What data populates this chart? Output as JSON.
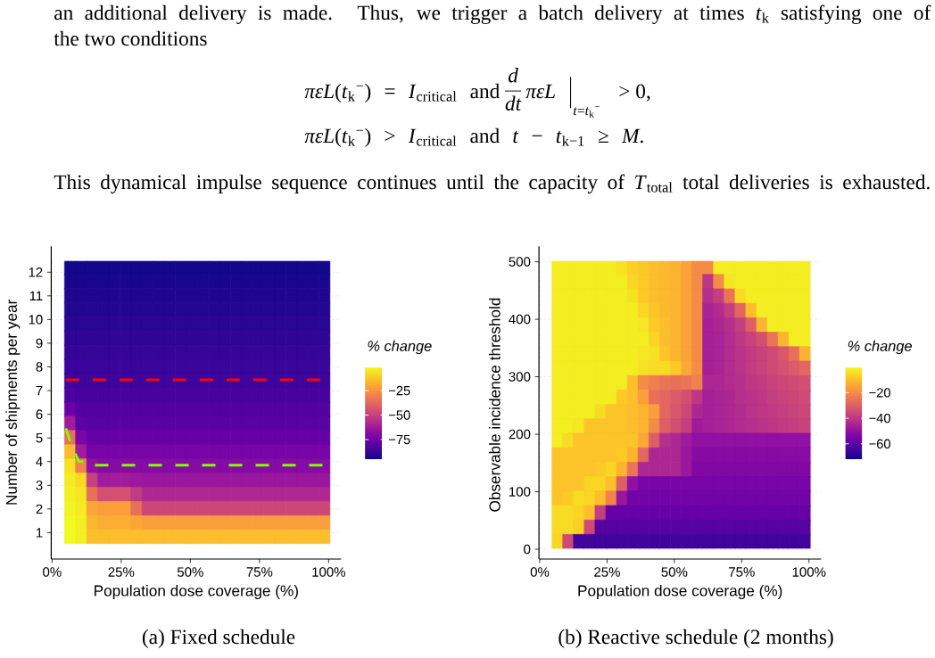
{
  "chart_data": [
    {
      "type": "heatmap",
      "xlabel": "Population dose coverage (%)",
      "ylabel": "Number of shipments per year",
      "clabel": "% change",
      "x": [
        6.5,
        10.5,
        14.5,
        18.5,
        22.5,
        26.5,
        30.5,
        34.5,
        38.5,
        42.5,
        46.5,
        50.5,
        54.5,
        58.5,
        62.5,
        66.5,
        70.5,
        74.5,
        78.5,
        82.5,
        86.5,
        90.5,
        94.5,
        98.5
      ],
      "cells": [
        [
          -94,
          -94,
          -94,
          -94,
          -94,
          -94,
          -94,
          -94,
          -94,
          -94,
          -94,
          -94,
          -94,
          -94,
          -94,
          -94,
          -94,
          -94,
          -94,
          -94,
          -94,
          -94,
          -94,
          -94
        ],
        [
          -93,
          -93,
          -93,
          -93,
          -93,
          -93,
          -93,
          -93,
          -93,
          -93,
          -93,
          -93,
          -93,
          -93,
          -93,
          -93,
          -93,
          -93,
          -93,
          -93,
          -93,
          -93,
          -93,
          -93
        ],
        [
          -92,
          -92,
          -92,
          -92,
          -92,
          -92,
          -92,
          -92,
          -92,
          -92,
          -92,
          -92,
          -92,
          -92,
          -92,
          -92,
          -92,
          -92,
          -92,
          -92,
          -92,
          -92,
          -92,
          -92
        ],
        [
          -91,
          -91,
          -91,
          -91,
          -91,
          -91,
          -91,
          -91,
          -91,
          -91,
          -91,
          -91,
          -91,
          -91,
          -91,
          -91,
          -91,
          -91,
          -91,
          -91,
          -91,
          -91,
          -91,
          -91
        ],
        [
          -90,
          -90,
          -90,
          -90,
          -90,
          -90,
          -90,
          -90,
          -90,
          -90,
          -90,
          -90,
          -90,
          -90,
          -90,
          -90,
          -90,
          -90,
          -90,
          -90,
          -90,
          -90,
          -90,
          -90
        ],
        [
          -89,
          -89,
          -89,
          -89,
          -89,
          -89,
          -89,
          -89,
          -89,
          -89,
          -89,
          -89,
          -89,
          -89,
          -89,
          -89,
          -89,
          -89,
          -89,
          -89,
          -89,
          -89,
          -89,
          -89
        ],
        [
          -88,
          -88,
          -88,
          -88,
          -88,
          -88,
          -88,
          -88,
          -88,
          -88,
          -88,
          -88,
          -88,
          -88,
          -88,
          -88,
          -88,
          -88,
          -88,
          -88,
          -88,
          -88,
          -88,
          -88
        ],
        [
          -87,
          -87,
          -87,
          -87,
          -87,
          -87,
          -87,
          -87,
          -87,
          -87,
          -87,
          -87,
          -87,
          -87,
          -87,
          -87,
          -87,
          -87,
          -87,
          -87,
          -87,
          -87,
          -87,
          -87
        ],
        [
          -86,
          -86,
          -86,
          -86,
          -86,
          -86,
          -86,
          -86,
          -86,
          -86,
          -86,
          -86,
          -86,
          -86,
          -86,
          -86,
          -86,
          -86,
          -86,
          -86,
          -86,
          -86,
          -86,
          -86
        ],
        [
          -83,
          -84,
          -84,
          -84,
          -84,
          -84,
          -84,
          -84,
          -84,
          -84,
          -84,
          -84,
          -84,
          -84,
          -84,
          -84,
          -84,
          -84,
          -84,
          -84,
          -84,
          -84,
          -84,
          -84
        ],
        [
          -76,
          -82,
          -82,
          -82,
          -82,
          -82,
          -82,
          -82,
          -82,
          -82,
          -82,
          -82,
          -82,
          -82,
          -82,
          -82,
          -82,
          -82,
          -82,
          -82,
          -82,
          -82,
          -82,
          -82
        ],
        [
          -62,
          -79,
          -80,
          -80,
          -80,
          -80,
          -80,
          -80,
          -80,
          -80,
          -80,
          -80,
          -80,
          -80,
          -80,
          -80,
          -80,
          -80,
          -80,
          -80,
          -80,
          -80,
          -80,
          -80
        ],
        [
          -35,
          -72,
          -77,
          -77,
          -77,
          -77,
          -77,
          -77,
          -77,
          -77,
          -77,
          -77,
          -77,
          -77,
          -77,
          -77,
          -77,
          -77,
          -77,
          -77,
          -77,
          -77,
          -77,
          -77
        ],
        [
          -15,
          -62,
          -73,
          -73,
          -73,
          -73,
          -73,
          -73,
          -73,
          -73,
          -73,
          -73,
          -73,
          -73,
          -73,
          -73,
          -73,
          -73,
          -73,
          -73,
          -73,
          -73,
          -73,
          -73
        ],
        [
          -6,
          -30,
          -66,
          -69,
          -69,
          -69,
          -69,
          -69,
          -69,
          -69,
          -69,
          -69,
          -69,
          -69,
          -69,
          -69,
          -69,
          -69,
          -69,
          -69,
          -69,
          -69,
          -69,
          -69
        ],
        [
          -4,
          -8,
          -50,
          -62,
          -62,
          -62,
          -63,
          -64,
          -64,
          -64,
          -64,
          -64,
          -64,
          -64,
          -64,
          -64,
          -64,
          -64,
          -64,
          -64,
          -64,
          -64,
          -64,
          -64
        ],
        [
          -3,
          -5,
          -35,
          -45,
          -45,
          -45,
          -52,
          -58,
          -58,
          -58,
          -58,
          -58,
          -58,
          -58,
          -58,
          -58,
          -58,
          -58,
          -58,
          -58,
          -58,
          -58,
          -58,
          -58
        ],
        [
          -2,
          -4,
          -20,
          -22,
          -22,
          -22,
          -35,
          -48,
          -48,
          -48,
          -48,
          -48,
          -48,
          -48,
          -48,
          -48,
          -48,
          -48,
          -48,
          -48,
          -48,
          -48,
          -48,
          -48
        ],
        [
          -1,
          -3,
          -16,
          -18,
          -18,
          -18,
          -20,
          -22,
          -22,
          -22,
          -22,
          -22,
          -22,
          -22,
          -22,
          -22,
          -22,
          -22,
          -22,
          -22,
          -22,
          -22,
          -22,
          -22
        ],
        [
          -1,
          -3,
          -14,
          -14,
          -14,
          -14,
          -14,
          -14,
          -14,
          -14,
          -14,
          -14,
          -14,
          -14,
          -14,
          -14,
          -14,
          -14,
          -14,
          -14,
          -14,
          -14,
          -14,
          -14
        ]
      ],
      "xlim": [
        -0.3,
        104.5
      ],
      "ylim": [
        0.5,
        12.5
      ],
      "xticks": [
        {
          "value": 0,
          "label": "0%"
        },
        {
          "value": 25,
          "label": "25%"
        },
        {
          "value": 50,
          "label": "50%"
        },
        {
          "value": 75,
          "label": "75%"
        },
        {
          "value": 100,
          "label": "100%"
        }
      ],
      "yticks": [
        1,
        2,
        3,
        4,
        5,
        6,
        7,
        8,
        9,
        10,
        11,
        12
      ],
      "clim": [
        -95,
        -1
      ],
      "cticks": [
        {
          "value": -25,
          "label": "−25"
        },
        {
          "value": -50,
          "label": "−50"
        },
        {
          "value": -75,
          "label": "−75"
        }
      ],
      "grid": true,
      "series": [
        {
          "type": "line",
          "color": "#ff0000",
          "line_style": "dashed",
          "x": [
            5,
            100
          ],
          "values": [
            7.45,
            7.45
          ]
        },
        {
          "type": "line",
          "color": "#7fff00",
          "line_style": "dashed",
          "x": [
            5,
            6.6,
            8.6,
            9.7,
            11.5,
            12.5,
            100
          ],
          "values": [
            5.4,
            4.85,
            4.3,
            4.0,
            4.0,
            3.85,
            3.85
          ]
        }
      ],
      "annotations": [
        "an additional delivery is made. Thus, we trigger a batch delivery at times *t*$_{k}$ satisfying one of",
        "the two conditions",
        "*πεL*(*t*$_{k}$$^{−}$) = *I*$_{critical}$ and",
        "d",
        "dt",
        "πεL",
        "*t*=*t*$_{k}$$^{−}$",
        "> 0,",
        "*πεL*(*t*$_{k}$$^{−}$) > *I*$_{critical}$ and *t* − *t*$_{k−1}$ ≥ *M*.",
        "This dynamical impulse sequence continues until the capacity of *T*$_{total}$ total deliveries is exhausted.",
        "(a) Fixed schedule"
      ]
    },
    {
      "type": "heatmap",
      "xlabel": "Population dose coverage (%)",
      "ylabel": "Observable incidence threshold",
      "clabel": "% change",
      "x": [
        6.5,
        10.5,
        14.5,
        18.5,
        22.5,
        26.5,
        30.5,
        34.5,
        38.5,
        42.5,
        46.5,
        50.5,
        54.5,
        58.5,
        62.5,
        66.5,
        70.5,
        74.5,
        78.5,
        82.5,
        86.5,
        90.5,
        94.5,
        98.5
      ],
      "cells": [
        [
          -2,
          -2,
          -2,
          -2,
          -2,
          -2,
          -4,
          -7,
          -8,
          -10,
          -11,
          -12,
          -15,
          -20,
          -20,
          -2,
          -2,
          -2,
          -2,
          -2,
          -2,
          -2,
          -2,
          -2
        ],
        [
          -2,
          -2,
          -2,
          -2,
          -2,
          -2,
          -2,
          -6,
          -8,
          -10,
          -11,
          -12,
          -15,
          -20,
          -40,
          -20,
          -3,
          -2,
          -2,
          -2,
          -2,
          -2,
          -2,
          -2
        ],
        [
          -2,
          -2,
          -2,
          -2,
          -2,
          -2,
          -2,
          -4,
          -8,
          -10,
          -11,
          -12,
          -15,
          -20,
          -42,
          -38,
          -25,
          -5,
          -2,
          -2,
          -2,
          -2,
          -2,
          -2
        ],
        [
          -2,
          -2,
          -2,
          -2,
          -2,
          -2,
          -2,
          -2,
          -6,
          -9,
          -11,
          -12,
          -15,
          -20,
          -45,
          -43,
          -38,
          -28,
          -10,
          -2,
          -2,
          -2,
          -2,
          -2
        ],
        [
          -2,
          -2,
          -2,
          -2,
          -2,
          -2,
          -2,
          -2,
          -3,
          -8,
          -10,
          -12,
          -15,
          -20,
          -46,
          -44,
          -42,
          -38,
          -30,
          -12,
          -2,
          -2,
          -2,
          -2
        ],
        [
          -2,
          -2,
          -2,
          -2,
          -2,
          -2,
          -2,
          -2,
          -2,
          -6,
          -10,
          -12,
          -15,
          -20,
          -46,
          -45,
          -43,
          -40,
          -37,
          -34,
          -25,
          -12,
          -2,
          -2
        ],
        [
          -2,
          -2,
          -2,
          -2,
          -2,
          -2,
          -2,
          -2,
          -3,
          -4,
          -9,
          -12,
          -15,
          -20,
          -46,
          -45,
          -43,
          -41,
          -39,
          -37,
          -35,
          -32,
          -26,
          -12
        ],
        [
          -2,
          -2,
          -2,
          -2,
          -2,
          -2,
          -2,
          -2,
          -4,
          -5,
          -5,
          -8,
          -14,
          -20,
          -46,
          -45,
          -43,
          -41,
          -39,
          -37,
          -35,
          -33,
          -31,
          -28
        ],
        [
          -2,
          -2,
          -2,
          -2,
          -2,
          -2,
          -2,
          -10,
          -20,
          -23,
          -25,
          -26,
          -25,
          -22,
          -44,
          -44,
          -43,
          -42,
          -40,
          -39,
          -37,
          -36,
          -35,
          -34
        ],
        [
          -2,
          -2,
          -2,
          -2,
          -2,
          -2,
          -8,
          -10,
          -16,
          -26,
          -28,
          -31,
          -34,
          -40,
          -46,
          -45,
          -44,
          -42,
          -41,
          -40,
          -38,
          -37,
          -36,
          -35
        ],
        [
          -2,
          -2,
          -2,
          -2,
          -5,
          -9,
          -9,
          -10,
          -12,
          -16,
          -28,
          -32,
          -36,
          -44,
          -46,
          -45,
          -44,
          -43,
          -41,
          -40,
          -39,
          -38,
          -37,
          -36
        ],
        [
          -2,
          -2,
          -3,
          -9,
          -9,
          -9,
          -9,
          -10,
          -12,
          -20,
          -30,
          -34,
          -38,
          -47,
          -46,
          -45,
          -44,
          -43,
          -42,
          -41,
          -40,
          -39,
          -38,
          -37
        ],
        [
          -2,
          -5,
          -9,
          -9,
          -9,
          -9,
          -9,
          -9,
          -14,
          -30,
          -42,
          -44,
          -47,
          -50,
          -50,
          -50,
          -50,
          -50,
          -50,
          -50,
          -50,
          -50,
          -50,
          -50
        ],
        [
          -9,
          -9,
          -9,
          -9,
          -9,
          -9,
          -8,
          -12,
          -28,
          -44,
          -44,
          -44,
          -48,
          -52,
          -52,
          -52,
          -52,
          -52,
          -52,
          -52,
          -52,
          -52,
          -52,
          -52
        ],
        [
          -9,
          -9,
          -9,
          -9,
          -8,
          -6,
          -12,
          -25,
          -44,
          -44,
          -44,
          -44,
          -48,
          -53,
          -53,
          -53,
          -53,
          -53,
          -53,
          -53,
          -53,
          -53,
          -53,
          -53
        ],
        [
          -9,
          -9,
          -9,
          -6,
          -6,
          -10,
          -30,
          -50,
          -55,
          -55,
          -55,
          -55,
          -55,
          -55,
          -55,
          -55,
          -55,
          -55,
          -55,
          -55,
          -55,
          -55,
          -55,
          -55
        ],
        [
          -9,
          -8,
          -5,
          -6,
          -10,
          -22,
          -48,
          -56,
          -56,
          -56,
          -56,
          -56,
          -56,
          -56,
          -56,
          -56,
          -56,
          -56,
          -56,
          -56,
          -56,
          -56,
          -56,
          -56
        ],
        [
          -5,
          -5,
          -6,
          -10,
          -38,
          -58,
          -58,
          -58,
          -58,
          -58,
          -58,
          -58,
          -58,
          -58,
          -58,
          -58,
          -58,
          -58,
          -58,
          -58,
          -58,
          -58,
          -58,
          -58
        ],
        [
          -5,
          -5,
          -7,
          -35,
          -61,
          -61,
          -61,
          -61,
          -61,
          -61,
          -61,
          -61,
          -61,
          -61,
          -61,
          -61,
          -61,
          -61,
          -61,
          -61,
          -61,
          -61,
          -61,
          -61
        ],
        [
          -6,
          -35,
          -65,
          -65,
          -65,
          -65,
          -65,
          -65,
          -65,
          -65,
          -65,
          -65,
          -65,
          -65,
          -65,
          -65,
          -65,
          -65,
          -65,
          -65,
          -65,
          -65,
          -65,
          -65
        ]
      ],
      "xlim": [
        -0.3,
        104.5
      ],
      "ylim": [
        0,
        502.5
      ],
      "xticks": [
        {
          "value": 0,
          "label": "0%"
        },
        {
          "value": 25,
          "label": "25%"
        },
        {
          "value": 50,
          "label": "50%"
        },
        {
          "value": 75,
          "label": "75%"
        },
        {
          "value": 100,
          "label": "100%"
        }
      ],
      "yticks": [
        0,
        100,
        200,
        300,
        400,
        500
      ],
      "clim": [
        -72,
        0
      ],
      "cticks": [
        {
          "value": -20,
          "label": "−20"
        },
        {
          "value": -40,
          "label": "−40"
        },
        {
          "value": -60,
          "label": "−60"
        }
      ],
      "grid": true,
      "annotations": [
        "(b) Reactive schedule (2 months)"
      ]
    }
  ]
}
